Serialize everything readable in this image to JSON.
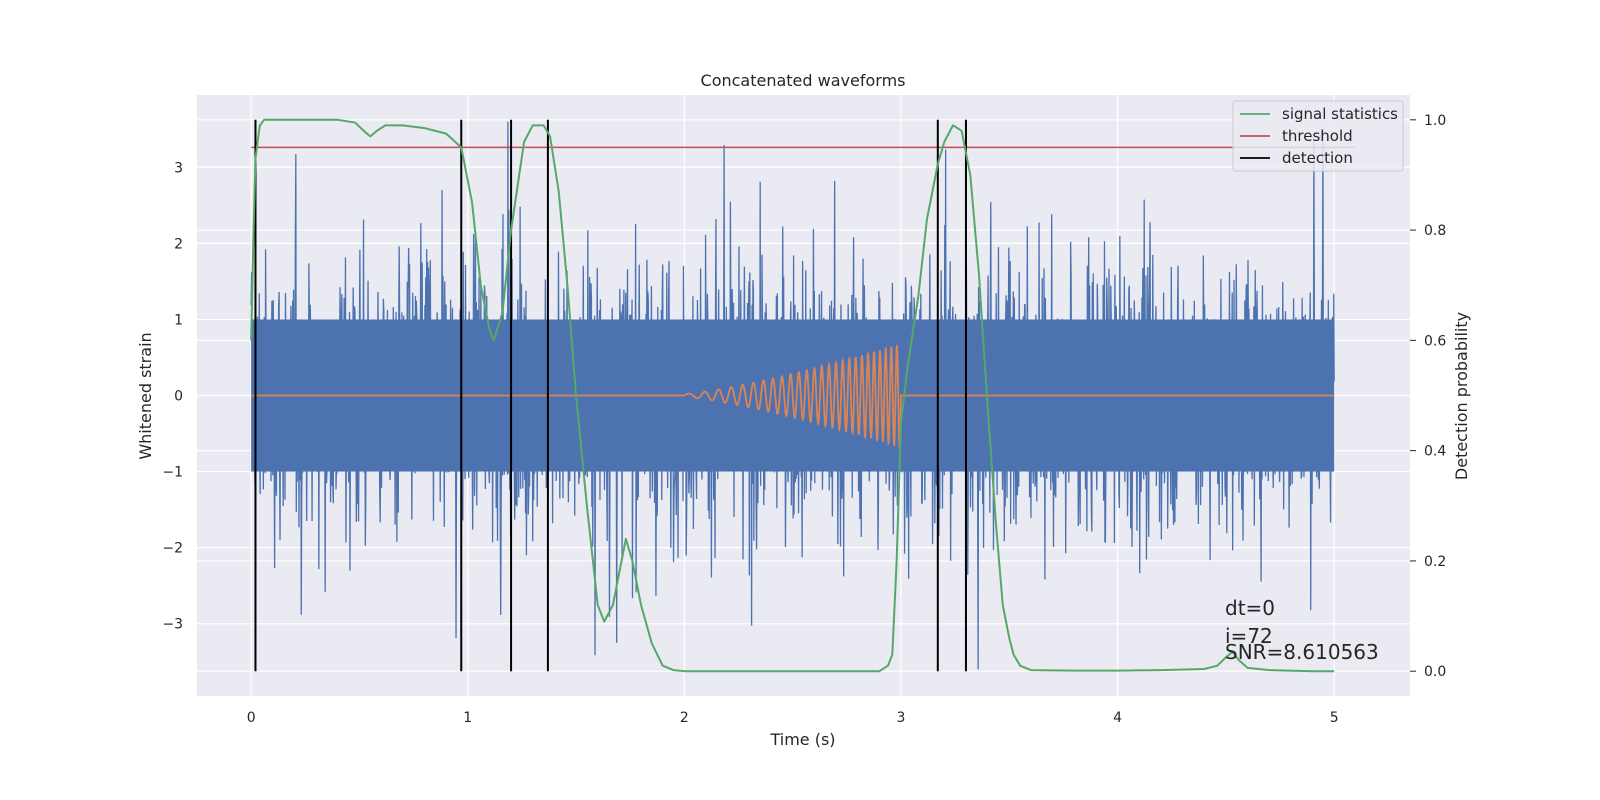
{
  "chart_data": {
    "type": "line",
    "title": "Concatenated waveforms",
    "xlabel": "Time (s)",
    "ylabel_left": "Whitened strain",
    "ylabel_right": "Detection probability",
    "xlim": [
      -0.25,
      5.35
    ],
    "ylim_left": [
      -3.95,
      3.95
    ],
    "ylim_right": [
      -0.045,
      1.045
    ],
    "x_ticks": [
      0,
      1,
      2,
      3,
      4,
      5
    ],
    "x_tick_labels": [
      "0",
      "1",
      "2",
      "3",
      "4",
      "5"
    ],
    "y_left_ticks": [
      -3,
      -2,
      -1,
      0,
      1,
      2,
      3
    ],
    "y_left_tick_labels": [
      "−3",
      "−2",
      "−1",
      "0",
      "1",
      "2",
      "3"
    ],
    "y_right_ticks": [
      0.0,
      0.2,
      0.4,
      0.6,
      0.8,
      1.0
    ],
    "y_right_tick_labels": [
      "0.0",
      "0.2",
      "0.4",
      "0.6",
      "0.8",
      "1.0"
    ],
    "grid": true,
    "legend_position": "top-right",
    "legend": [
      {
        "label": "signal statistics",
        "color": "#55a868"
      },
      {
        "label": "threshold",
        "color": "#c44e52"
      },
      {
        "label": "detection",
        "color": "#000000"
      }
    ],
    "colors": {
      "strain": "#4c72b0",
      "template": "#dd8452",
      "signal_statistics": "#55a868",
      "threshold": "#c44e52",
      "detection": "#000000",
      "plot_background": "#eaeaf2",
      "grid": "#ffffff"
    },
    "strain": {
      "x_range": [
        0,
        5
      ],
      "core_amplitude": 1.0,
      "peak_amplitude_max": 3.6,
      "peak_amplitude_min": -3.6
    },
    "template_waveform": {
      "x_start": 2.0,
      "x_end": 3.0,
      "amplitude_start": 0.02,
      "amplitude_end": 0.68,
      "baseline": 0
    },
    "threshold": {
      "y": 0.95,
      "x_range": [
        0,
        5.1
      ]
    },
    "detections": [
      0.02,
      0.97,
      1.2,
      1.37,
      3.17,
      3.3
    ],
    "detection_y_range": [
      0.0,
      1.0
    ],
    "signal_statistics": {
      "x": [
        0.0,
        0.01,
        0.02,
        0.04,
        0.06,
        0.1,
        0.2,
        0.3,
        0.4,
        0.48,
        0.52,
        0.55,
        0.58,
        0.62,
        0.7,
        0.8,
        0.9,
        0.97,
        1.02,
        1.06,
        1.1,
        1.12,
        1.16,
        1.2,
        1.26,
        1.3,
        1.35,
        1.38,
        1.42,
        1.46,
        1.5,
        1.55,
        1.6,
        1.63,
        1.67,
        1.7,
        1.73,
        1.76,
        1.8,
        1.85,
        1.9,
        1.95,
        2.0,
        2.5,
        2.9,
        2.94,
        2.96,
        2.98,
        3.0,
        3.03,
        3.08,
        3.12,
        3.17,
        3.2,
        3.24,
        3.28,
        3.32,
        3.36,
        3.4,
        3.44,
        3.47,
        3.5,
        3.52,
        3.55,
        3.6,
        3.8,
        4.0,
        4.2,
        4.4,
        4.46,
        4.5,
        4.53,
        4.56,
        4.6,
        4.7,
        4.9,
        5.0
      ],
      "y": [
        0.6,
        0.78,
        0.93,
        0.99,
        1.0,
        1.0,
        1.0,
        1.0,
        1.0,
        0.995,
        0.98,
        0.97,
        0.98,
        0.99,
        0.99,
        0.985,
        0.975,
        0.95,
        0.85,
        0.7,
        0.62,
        0.6,
        0.65,
        0.8,
        0.96,
        0.99,
        0.99,
        0.97,
        0.87,
        0.7,
        0.5,
        0.3,
        0.12,
        0.09,
        0.12,
        0.18,
        0.24,
        0.2,
        0.12,
        0.05,
        0.01,
        0.002,
        0.0,
        0.0,
        0.0,
        0.01,
        0.03,
        0.2,
        0.45,
        0.55,
        0.68,
        0.82,
        0.92,
        0.96,
        0.99,
        0.98,
        0.9,
        0.72,
        0.48,
        0.26,
        0.12,
        0.06,
        0.03,
        0.01,
        0.002,
        0.001,
        0.001,
        0.002,
        0.004,
        0.01,
        0.025,
        0.035,
        0.02,
        0.006,
        0.002,
        0.0,
        0.0
      ]
    },
    "annotations": [
      "dt=0",
      "i=72",
      "SNR=8.610563"
    ]
  }
}
